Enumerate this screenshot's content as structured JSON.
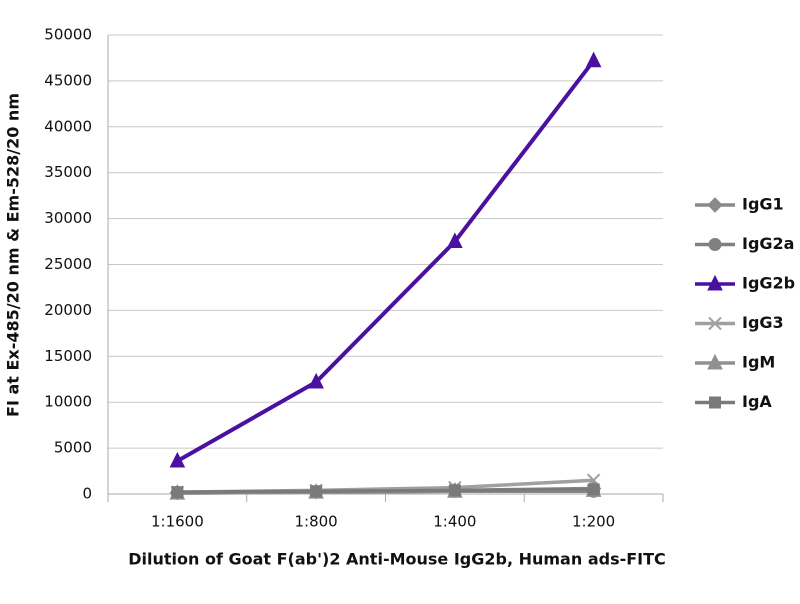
{
  "chart_data": {
    "type": "line",
    "x_label": "Dilution of Goat F(ab')2 Anti-Mouse IgG2b, Human ads-FITC",
    "y_label": "FI at Ex-485/20 nm & Em-528/20 nm",
    "categories": [
      "1:1600",
      "1:800",
      "1:400",
      "1:200"
    ],
    "series": [
      {
        "name": "IgG1",
        "color": "#8a8a8a",
        "marker": "diamond",
        "values": [
          150,
          250,
          400,
          600
        ]
      },
      {
        "name": "IgG2a",
        "color": "#808080",
        "marker": "circle",
        "values": [
          100,
          200,
          300,
          300
        ]
      },
      {
        "name": "IgG2b",
        "color": "#4b10a0",
        "marker": "triangle",
        "values": [
          3600,
          12200,
          27500,
          47200
        ]
      },
      {
        "name": "IgG3",
        "color": "#a0a0a0",
        "marker": "x",
        "values": [
          200,
          400,
          700,
          1500
        ]
      },
      {
        "name": "IgM",
        "color": "#909090",
        "marker": "triangle",
        "values": [
          100,
          200,
          300,
          400
        ]
      },
      {
        "name": "IgA",
        "color": "#7a7a7a",
        "marker": "square",
        "values": [
          200,
          300,
          400,
          500
        ]
      }
    ],
    "ylim": [
      0,
      50000
    ],
    "yticks": [
      0,
      5000,
      10000,
      15000,
      20000,
      25000,
      30000,
      35000,
      40000,
      45000,
      50000
    ],
    "grid": true,
    "legend": "right"
  }
}
